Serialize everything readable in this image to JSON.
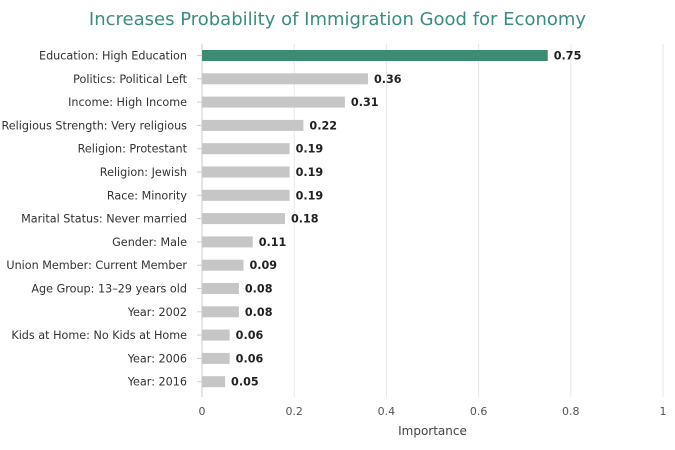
{
  "chart_data": {
    "type": "bar",
    "orientation": "horizontal",
    "title": "Increases Probability of Immigration Good for Economy",
    "xlabel": "Importance",
    "ylabel": "",
    "xlim": [
      0,
      1
    ],
    "x_ticks": [
      "0",
      "0.2",
      "0.4",
      "0.6",
      "0.8",
      "1"
    ],
    "grid": true,
    "highlight_color": "#3d8b73",
    "bar_color": "#c6c6c6",
    "title_color": "#3a8c82",
    "categories": [
      "Education: High Education",
      "Politics: Political Left",
      "Income: High Income",
      "Religious Strength: Very religious",
      "Religion: Protestant",
      "Religion: Jewish",
      "Race: Minority",
      "Marital Status: Never married",
      "Gender: Male",
      "Union Member: Current Member",
      "Age Group: 13–29 years old",
      "Year: 2002",
      "Kids at Home: No Kids at Home",
      "Year: 2006",
      "Year: 2016"
    ],
    "values": [
      0.75,
      0.36,
      0.31,
      0.22,
      0.19,
      0.19,
      0.19,
      0.18,
      0.11,
      0.09,
      0.08,
      0.08,
      0.06,
      0.06,
      0.05
    ],
    "value_labels": [
      "0.75",
      "0.36",
      "0.31",
      "0.22",
      "0.19",
      "0.19",
      "0.19",
      "0.18",
      "0.11",
      "0.09",
      "0.08",
      "0.08",
      "0.06",
      "0.06",
      "0.05"
    ]
  }
}
